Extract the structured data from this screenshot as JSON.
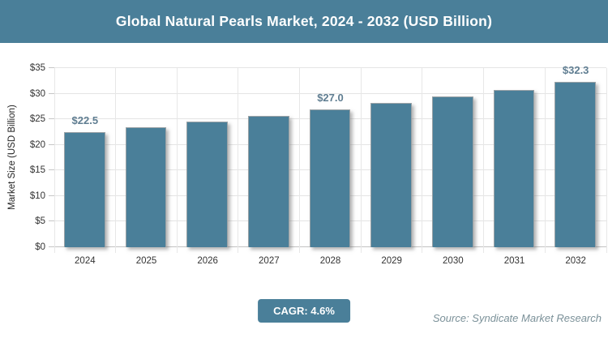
{
  "header": {
    "title": "Global Natural Pearls Market, 2024 - 2032 (USD Billion)"
  },
  "colors": {
    "accent": "#4a7f99",
    "bar": "#4a7f99",
    "gridline": "#e4e4e4",
    "data_label": "#5f7d91",
    "source_text": "#7b9199"
  },
  "chart_data": {
    "type": "bar",
    "title": "Global Natural Pearls Market, 2024 - 2032 (USD Billion)",
    "xlabel": "",
    "ylabel": "Market Size (USD Billion)",
    "categories": [
      "2024",
      "2025",
      "2026",
      "2027",
      "2028",
      "2029",
      "2030",
      "2031",
      "2032"
    ],
    "values": [
      22.5,
      23.5,
      24.6,
      25.7,
      27.0,
      28.2,
      29.5,
      30.8,
      32.3
    ],
    "point_labels": [
      "$22.5",
      "",
      "",
      "",
      "$27.0",
      "",
      "",
      "",
      "$32.3"
    ],
    "ylim": [
      0,
      35
    ],
    "ytick_step": 5,
    "ytick_labels": [
      "$0",
      "$5",
      "$10",
      "$15",
      "$20",
      "$25",
      "$30",
      "$35"
    ],
    "grid": true,
    "legend": "none"
  },
  "footer": {
    "cagr_label": "CAGR: 4.6%",
    "source": "Source: Syndicate Market Research"
  }
}
